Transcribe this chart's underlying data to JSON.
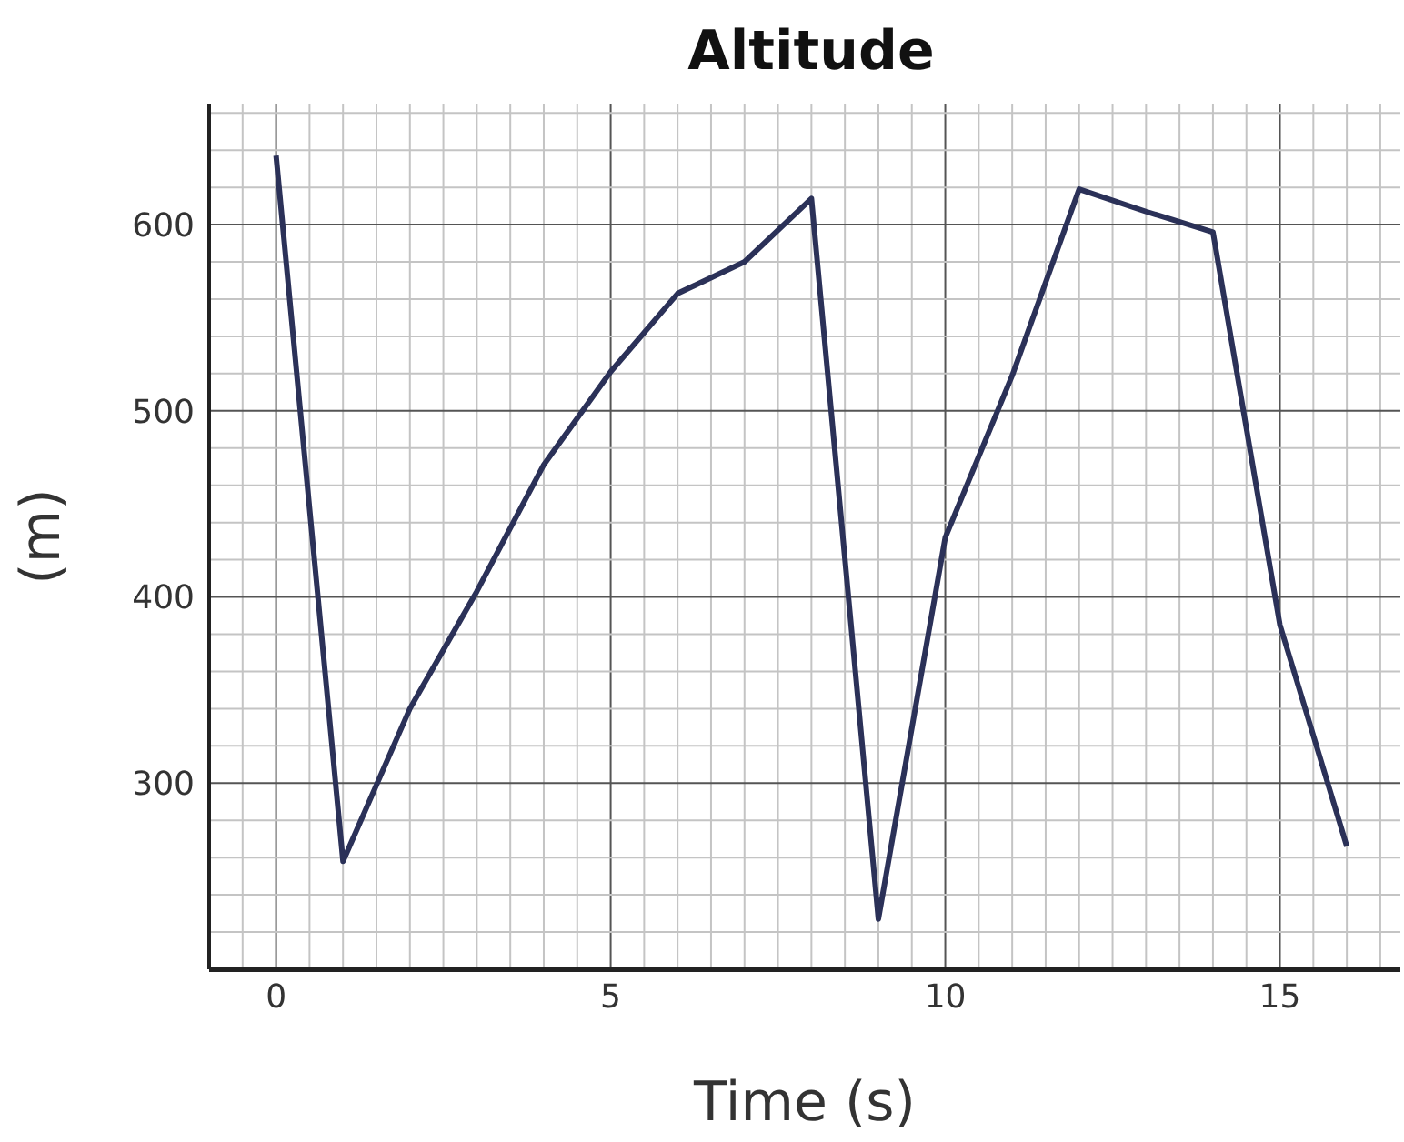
{
  "chart_data": {
    "type": "line",
    "title": "Altitude",
    "xlabel": "Time (s)",
    "ylabel": "(m)",
    "x": [
      0,
      1,
      2,
      3,
      4,
      5,
      6,
      7,
      8,
      9,
      10,
      11,
      12,
      13,
      14,
      15,
      16
    ],
    "series": [
      {
        "color": "#2b3158",
        "values": [
          637,
          258,
          340,
          403,
          471,
          521,
          563,
          580,
          614,
          227,
          432,
          519,
          619,
          607,
          596,
          385,
          266
        ]
      }
    ],
    "xlim": [
      -1,
      16.8
    ],
    "xticks": [
      {
        "value": -1,
        "label": null
      },
      {
        "value": -0.5,
        "label": null
      },
      0,
      {
        "value": 0.5,
        "label": null
      },
      {
        "value": 1,
        "label": null
      },
      {
        "value": 1.5,
        "label": null
      },
      {
        "value": 2,
        "label": null
      },
      {
        "value": 2.5,
        "label": null
      },
      {
        "value": 3,
        "label": null
      },
      {
        "value": 3.5,
        "label": null
      },
      {
        "value": 4,
        "label": null
      },
      {
        "value": 4.5,
        "label": null
      },
      5,
      {
        "value": 5.5,
        "label": null
      },
      {
        "value": 6,
        "label": null
      },
      {
        "value": 6.5,
        "label": null
      },
      {
        "value": 7,
        "label": null
      },
      {
        "value": 7.5,
        "label": null
      },
      {
        "value": 8,
        "label": null
      },
      {
        "value": 8.5,
        "label": null
      },
      {
        "value": 9,
        "label": null
      },
      {
        "value": 9.5,
        "label": null
      },
      10,
      {
        "value": 10.5,
        "label": null
      },
      {
        "value": 11,
        "label": null
      },
      {
        "value": 11.5,
        "label": null
      },
      {
        "value": 12,
        "label": null
      },
      {
        "value": 12.5,
        "label": null
      },
      {
        "value": 13,
        "label": null
      },
      {
        "value": 13.5,
        "label": null
      },
      {
        "value": 14,
        "label": null
      },
      {
        "value": 14.5,
        "label": null
      },
      15,
      {
        "value": 15.5,
        "label": null
      },
      {
        "value": 16,
        "label": null
      },
      {
        "value": 16.5,
        "label": null
      }
    ],
    "ylim": [
      200,
      665
    ],
    "yticks": [
      {
        "value": 200,
        "label": null
      },
      {
        "value": 220,
        "label": null
      },
      {
        "value": 240,
        "label": null
      },
      {
        "value": 260,
        "label": null
      },
      {
        "value": 280,
        "label": null
      },
      300,
      {
        "value": 320,
        "label": null
      },
      {
        "value": 340,
        "label": null
      },
      {
        "value": 360,
        "label": null
      },
      {
        "value": 380,
        "label": null
      },
      400,
      {
        "value": 420,
        "label": null
      },
      {
        "value": 440,
        "label": null
      },
      {
        "value": 460,
        "label": null
      },
      {
        "value": 480,
        "label": null
      },
      500,
      {
        "value": 520,
        "label": null
      },
      {
        "value": 540,
        "label": null
      },
      {
        "value": 560,
        "label": null
      },
      {
        "value": 580,
        "label": null
      },
      600,
      {
        "value": 620,
        "label": null
      },
      {
        "value": 640,
        "label": null
      },
      {
        "value": 660,
        "label": null
      }
    ],
    "grid": true,
    "marker": "none",
    "line_style": "solid"
  }
}
